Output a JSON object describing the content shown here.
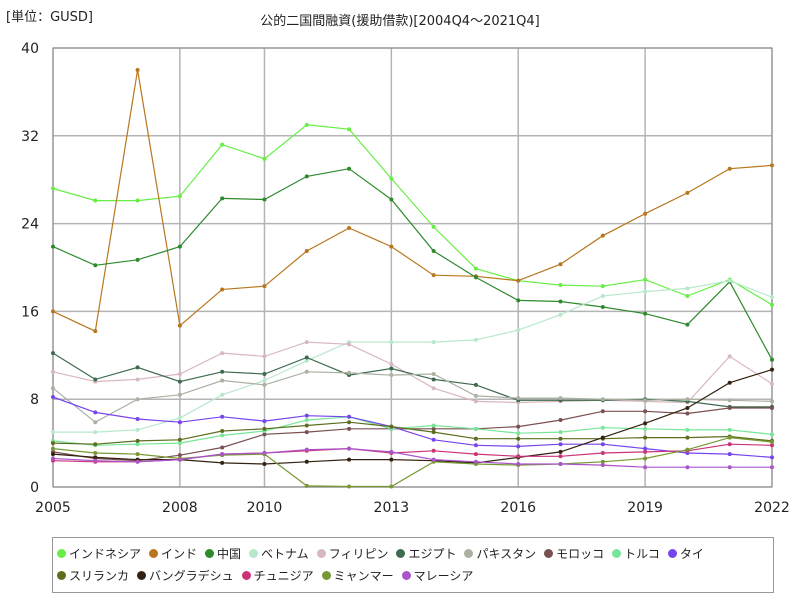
{
  "chart_data": {
    "type": "line",
    "title": "公的二国間融資(援助借款)[2004Q4～2021Q4]",
    "unit_label": "[単位：GUSD]",
    "xlabel": "",
    "ylabel": "",
    "x": [
      2005,
      2006,
      2007,
      2008,
      2009,
      2010,
      2011,
      2012,
      2013,
      2014,
      2015,
      2016,
      2017,
      2018,
      2019,
      2020,
      2021,
      2022
    ],
    "xlim": [
      2005,
      2022
    ],
    "ylim": [
      0,
      40
    ],
    "x_ticks": [
      2005,
      2008,
      2010,
      2013,
      2016,
      2019,
      2022
    ],
    "y_ticks": [
      0,
      8,
      16,
      24,
      32,
      40
    ],
    "grid": true,
    "legend_position": "bottom",
    "series": [
      {
        "name": "インドネシア",
        "color": "#66ee44",
        "values": [
          27.2,
          26.1,
          26.1,
          26.5,
          31.2,
          29.9,
          33.0,
          32.6,
          28.1,
          23.7,
          19.9,
          18.8,
          18.4,
          18.3,
          18.9,
          17.4,
          18.9,
          16.6
        ]
      },
      {
        "name": "インド",
        "color": "#b8771e",
        "values": [
          16.0,
          14.2,
          38.0,
          14.7,
          18.0,
          18.3,
          21.5,
          23.6,
          21.9,
          19.3,
          19.2,
          18.8,
          20.3,
          22.9,
          24.9,
          26.8,
          29.0,
          29.3
        ]
      },
      {
        "name": "中国",
        "color": "#2d8a2d",
        "values": [
          21.9,
          20.2,
          20.7,
          21.9,
          26.3,
          26.2,
          28.3,
          29.0,
          26.2,
          21.5,
          19.1,
          17.0,
          16.9,
          16.4,
          15.8,
          14.8,
          18.7,
          11.6
        ]
      },
      {
        "name": "ベトナム",
        "color": "#b8e8cc",
        "values": [
          5.0,
          5.0,
          5.2,
          6.3,
          8.4,
          9.7,
          11.5,
          13.2,
          13.2,
          13.2,
          13.4,
          14.3,
          15.7,
          17.4,
          17.8,
          18.1,
          18.8,
          17.3
        ]
      },
      {
        "name": "フィリピン",
        "color": "#d8b8c0",
        "values": [
          10.5,
          9.6,
          9.8,
          10.3,
          12.2,
          11.9,
          13.2,
          13.0,
          11.2,
          9.0,
          7.8,
          7.7,
          7.8,
          7.9,
          7.8,
          7.7,
          11.9,
          9.4
        ]
      },
      {
        "name": "エジプト",
        "color": "#3d6b4e",
        "values": [
          12.2,
          9.8,
          10.9,
          9.6,
          10.5,
          10.3,
          11.8,
          10.2,
          10.8,
          9.8,
          9.3,
          7.9,
          7.9,
          7.9,
          8.0,
          7.8,
          7.3,
          7.3
        ]
      },
      {
        "name": "パキスタン",
        "color": "#aab0a2",
        "values": [
          9.0,
          5.9,
          8.0,
          8.4,
          9.7,
          9.3,
          10.5,
          10.4,
          10.2,
          10.3,
          8.3,
          8.1,
          8.1,
          8.0,
          7.9,
          8.0,
          7.9,
          7.8
        ]
      },
      {
        "name": "モロッコ",
        "color": "#7a5050",
        "values": [
          3.2,
          2.6,
          2.4,
          2.9,
          3.6,
          4.8,
          5.0,
          5.3,
          5.3,
          5.3,
          5.3,
          5.5,
          6.1,
          6.9,
          6.9,
          6.7,
          7.2,
          7.2
        ]
      },
      {
        "name": "トルコ",
        "color": "#77e699",
        "values": [
          4.2,
          3.8,
          3.9,
          4.0,
          4.7,
          5.1,
          6.1,
          6.4,
          5.3,
          5.6,
          5.3,
          4.9,
          5.0,
          5.4,
          5.3,
          5.2,
          5.2,
          4.8
        ]
      },
      {
        "name": "タイ",
        "color": "#7744ee",
        "values": [
          8.2,
          6.8,
          6.2,
          5.9,
          6.4,
          6.0,
          6.5,
          6.4,
          5.5,
          4.3,
          3.8,
          3.7,
          3.9,
          3.9,
          3.5,
          3.1,
          3.0,
          2.7
        ]
      },
      {
        "name": "スリランカ",
        "color": "#5c6e1e",
        "values": [
          4.0,
          3.9,
          4.2,
          4.3,
          5.1,
          5.3,
          5.6,
          5.9,
          5.5,
          5.0,
          4.4,
          4.4,
          4.4,
          4.4,
          4.5,
          4.5,
          4.6,
          4.2
        ]
      },
      {
        "name": "バングラデシュ",
        "color": "#332211",
        "values": [
          3.0,
          2.7,
          2.5,
          2.5,
          2.2,
          2.1,
          2.3,
          2.5,
          2.5,
          2.4,
          2.2,
          2.7,
          3.2,
          4.5,
          5.8,
          7.2,
          9.5,
          10.7
        ]
      },
      {
        "name": "チュニジア",
        "color": "#cc3377",
        "values": [
          2.4,
          2.3,
          2.3,
          2.5,
          3.0,
          3.1,
          3.3,
          3.5,
          3.1,
          3.3,
          3.0,
          2.8,
          2.8,
          3.1,
          3.2,
          3.3,
          3.9,
          3.8
        ]
      },
      {
        "name": "ミャンマー",
        "color": "#779933",
        "values": [
          3.5,
          3.1,
          3.0,
          2.6,
          2.9,
          3.0,
          0.1,
          0.05,
          0.05,
          2.3,
          2.1,
          2.0,
          2.1,
          2.3,
          2.6,
          3.4,
          4.5,
          4.1
        ]
      },
      {
        "name": "マレーシア",
        "color": "#aa55cc",
        "values": [
          2.6,
          2.4,
          2.3,
          2.5,
          3.0,
          3.1,
          3.4,
          3.5,
          3.2,
          2.5,
          2.3,
          2.1,
          2.1,
          2.0,
          1.8,
          1.8,
          1.8,
          1.8
        ]
      }
    ]
  }
}
